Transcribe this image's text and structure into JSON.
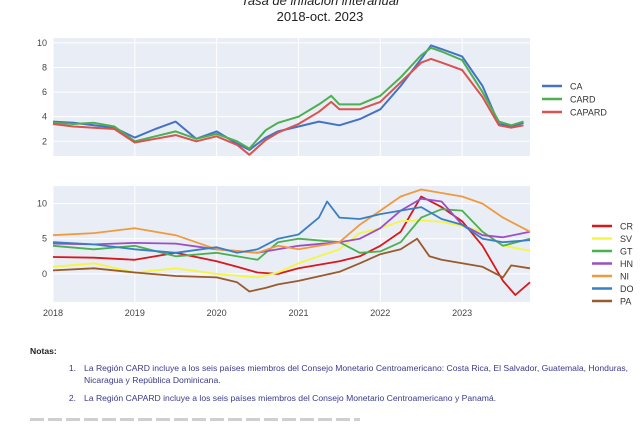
{
  "header": {
    "title": "Tasa de inflación interanual",
    "subtitle": "2018-oct. 2023"
  },
  "chart_data": [
    {
      "type": "line",
      "ylim": [
        0.8,
        10.4
      ],
      "yticks": [
        2,
        4,
        6,
        8,
        10
      ],
      "xlim": [
        2018,
        2023.83
      ],
      "xticks": [
        2018,
        2019,
        2020,
        2021,
        2022,
        2023
      ],
      "x_tick_labels_shown": false,
      "grid": true,
      "legend": "right",
      "series": [
        {
          "name": "CA",
          "color": "#4472c4",
          "points": [
            [
              2018,
              3.6
            ],
            [
              2018.25,
              3.5
            ],
            [
              2018.5,
              3.3
            ],
            [
              2018.75,
              3.1
            ],
            [
              2019,
              2.3
            ],
            [
              2019.25,
              3.0
            ],
            [
              2019.5,
              3.6
            ],
            [
              2019.75,
              2.2
            ],
            [
              2020,
              2.8
            ],
            [
              2020.25,
              1.8
            ],
            [
              2020.4,
              1.3
            ],
            [
              2020.6,
              2.3
            ],
            [
              2020.75,
              2.8
            ],
            [
              2021,
              3.2
            ],
            [
              2021.25,
              3.6
            ],
            [
              2021.5,
              3.3
            ],
            [
              2021.75,
              3.8
            ],
            [
              2022,
              4.6
            ],
            [
              2022.25,
              6.5
            ],
            [
              2022.5,
              8.7
            ],
            [
              2022.62,
              9.8
            ],
            [
              2022.75,
              9.5
            ],
            [
              2023,
              8.9
            ],
            [
              2023.25,
              6.5
            ],
            [
              2023.45,
              3.4
            ],
            [
              2023.6,
              3.2
            ],
            [
              2023.75,
              3.5
            ]
          ]
        },
        {
          "name": "CARD",
          "color": "#4caf50",
          "points": [
            [
              2018,
              3.5
            ],
            [
              2018.25,
              3.4
            ],
            [
              2018.5,
              3.5
            ],
            [
              2018.75,
              3.2
            ],
            [
              2019,
              2.0
            ],
            [
              2019.25,
              2.4
            ],
            [
              2019.5,
              2.8
            ],
            [
              2019.75,
              2.2
            ],
            [
              2020,
              2.6
            ],
            [
              2020.25,
              2.0
            ],
            [
              2020.4,
              1.4
            ],
            [
              2020.6,
              2.9
            ],
            [
              2020.75,
              3.5
            ],
            [
              2021,
              4.0
            ],
            [
              2021.25,
              5.0
            ],
            [
              2021.4,
              5.7
            ],
            [
              2021.5,
              5.0
            ],
            [
              2021.75,
              5.0
            ],
            [
              2022,
              5.7
            ],
            [
              2022.25,
              7.2
            ],
            [
              2022.5,
              9.0
            ],
            [
              2022.62,
              9.6
            ],
            [
              2022.75,
              9.3
            ],
            [
              2023,
              8.6
            ],
            [
              2023.25,
              6.0
            ],
            [
              2023.45,
              3.6
            ],
            [
              2023.6,
              3.3
            ],
            [
              2023.75,
              3.6
            ]
          ]
        },
        {
          "name": "CAPARD",
          "color": "#d9534f",
          "points": [
            [
              2018,
              3.4
            ],
            [
              2018.25,
              3.2
            ],
            [
              2018.5,
              3.1
            ],
            [
              2018.75,
              3.0
            ],
            [
              2019,
              1.9
            ],
            [
              2019.25,
              2.2
            ],
            [
              2019.5,
              2.5
            ],
            [
              2019.75,
              2.0
            ],
            [
              2020,
              2.4
            ],
            [
              2020.25,
              1.7
            ],
            [
              2020.4,
              0.9
            ],
            [
              2020.6,
              2.1
            ],
            [
              2020.75,
              2.7
            ],
            [
              2021,
              3.4
            ],
            [
              2021.25,
              4.4
            ],
            [
              2021.4,
              5.2
            ],
            [
              2021.5,
              4.6
            ],
            [
              2021.75,
              4.6
            ],
            [
              2022,
              5.2
            ],
            [
              2022.25,
              6.8
            ],
            [
              2022.5,
              8.4
            ],
            [
              2022.62,
              8.7
            ],
            [
              2022.75,
              8.4
            ],
            [
              2023,
              7.8
            ],
            [
              2023.25,
              5.6
            ],
            [
              2023.45,
              3.3
            ],
            [
              2023.6,
              3.1
            ],
            [
              2023.75,
              3.3
            ]
          ]
        }
      ]
    },
    {
      "type": "line",
      "ylim": [
        -4,
        12.5
      ],
      "yticks": [
        0,
        5,
        10
      ],
      "xlim": [
        2018,
        2023.83
      ],
      "xticks": [
        2018,
        2019,
        2020,
        2021,
        2022,
        2023
      ],
      "x_tick_labels": [
        "2018",
        "2019",
        "2020",
        "2021",
        "2022",
        "2023"
      ],
      "grid": true,
      "legend": "right",
      "series": [
        {
          "name": "CR",
          "color": "#d7191c",
          "points": [
            [
              2018,
              2.4
            ],
            [
              2018.5,
              2.3
            ],
            [
              2019,
              2.0
            ],
            [
              2019.5,
              3.0
            ],
            [
              2020,
              1.8
            ],
            [
              2020.25,
              1.0
            ],
            [
              2020.5,
              0.2
            ],
            [
              2020.75,
              0.0
            ],
            [
              2021,
              0.8
            ],
            [
              2021.5,
              1.8
            ],
            [
              2021.75,
              2.5
            ],
            [
              2022,
              4.0
            ],
            [
              2022.25,
              6.0
            ],
            [
              2022.5,
              11.0
            ],
            [
              2022.75,
              9.5
            ],
            [
              2023,
              7.5
            ],
            [
              2023.25,
              4.0
            ],
            [
              2023.5,
              -1.0
            ],
            [
              2023.65,
              -3.0
            ],
            [
              2023.83,
              -1.2
            ]
          ]
        },
        {
          "name": "SV",
          "color": "#f5f542",
          "points": [
            [
              2018,
              1.0
            ],
            [
              2018.5,
              1.5
            ],
            [
              2019,
              0.2
            ],
            [
              2019.5,
              0.8
            ],
            [
              2020,
              0.0
            ],
            [
              2020.5,
              -0.5
            ],
            [
              2020.75,
              0.2
            ],
            [
              2021,
              1.5
            ],
            [
              2021.5,
              3.5
            ],
            [
              2021.75,
              5.8
            ],
            [
              2022,
              6.5
            ],
            [
              2022.25,
              7.5
            ],
            [
              2022.5,
              7.6
            ],
            [
              2022.75,
              7.4
            ],
            [
              2023,
              6.8
            ],
            [
              2023.25,
              6.0
            ],
            [
              2023.5,
              4.0
            ],
            [
              2023.83,
              3.3
            ]
          ]
        },
        {
          "name": "GT",
          "color": "#4caf50",
          "points": [
            [
              2018,
              4.0
            ],
            [
              2018.5,
              3.5
            ],
            [
              2019,
              4.0
            ],
            [
              2019.5,
              2.5
            ],
            [
              2020,
              3.0
            ],
            [
              2020.5,
              2.0
            ],
            [
              2020.75,
              4.5
            ],
            [
              2021,
              5.0
            ],
            [
              2021.5,
              4.5
            ],
            [
              2021.75,
              3.0
            ],
            [
              2022,
              3.2
            ],
            [
              2022.25,
              4.5
            ],
            [
              2022.5,
              8.0
            ],
            [
              2022.75,
              9.2
            ],
            [
              2023,
              9.0
            ],
            [
              2023.25,
              6.0
            ],
            [
              2023.5,
              4.0
            ],
            [
              2023.83,
              5.0
            ]
          ]
        },
        {
          "name": "HN",
          "color": "#9c4fc4",
          "points": [
            [
              2018,
              4.3
            ],
            [
              2018.5,
              4.2
            ],
            [
              2019,
              4.4
            ],
            [
              2019.5,
              4.3
            ],
            [
              2020,
              3.5
            ],
            [
              2020.5,
              3.0
            ],
            [
              2020.75,
              3.5
            ],
            [
              2021,
              4.0
            ],
            [
              2021.5,
              4.5
            ],
            [
              2021.75,
              5.0
            ],
            [
              2022,
              6.5
            ],
            [
              2022.25,
              9.0
            ],
            [
              2022.5,
              10.7
            ],
            [
              2022.75,
              10.3
            ],
            [
              2023,
              7.0
            ],
            [
              2023.25,
              5.5
            ],
            [
              2023.5,
              5.2
            ],
            [
              2023.83,
              6.0
            ]
          ]
        },
        {
          "name": "NI",
          "color": "#f09a3e",
          "points": [
            [
              2018,
              5.5
            ],
            [
              2018.5,
              5.8
            ],
            [
              2019,
              6.5
            ],
            [
              2019.5,
              5.5
            ],
            [
              2020,
              3.5
            ],
            [
              2020.5,
              3.0
            ],
            [
              2020.75,
              4.0
            ],
            [
              2021,
              3.5
            ],
            [
              2021.5,
              4.5
            ],
            [
              2021.75,
              7.0
            ],
            [
              2022,
              9.0
            ],
            [
              2022.25,
              11.0
            ],
            [
              2022.5,
              12.0
            ],
            [
              2022.75,
              11.5
            ],
            [
              2023,
              11.0
            ],
            [
              2023.25,
              10.0
            ],
            [
              2023.5,
              8.0
            ],
            [
              2023.83,
              6.0
            ]
          ]
        },
        {
          "name": "DO",
          "color": "#3a7ec4",
          "points": [
            [
              2018,
              4.5
            ],
            [
              2018.5,
              4.2
            ],
            [
              2019,
              3.5
            ],
            [
              2019.5,
              3.0
            ],
            [
              2020,
              3.8
            ],
            [
              2020.25,
              3.0
            ],
            [
              2020.5,
              3.5
            ],
            [
              2020.75,
              5.0
            ],
            [
              2021,
              5.6
            ],
            [
              2021.25,
              8.0
            ],
            [
              2021.35,
              10.3
            ],
            [
              2021.5,
              8.0
            ],
            [
              2021.75,
              7.8
            ],
            [
              2022,
              8.5
            ],
            [
              2022.25,
              9.0
            ],
            [
              2022.5,
              9.5
            ],
            [
              2022.75,
              7.8
            ],
            [
              2023,
              7.0
            ],
            [
              2023.25,
              5.0
            ],
            [
              2023.5,
              4.5
            ],
            [
              2023.83,
              4.8
            ]
          ]
        },
        {
          "name": "PA",
          "color": "#9b5a2b",
          "points": [
            [
              2018,
              0.5
            ],
            [
              2018.5,
              0.8
            ],
            [
              2019,
              0.2
            ],
            [
              2019.5,
              -0.3
            ],
            [
              2020,
              -0.5
            ],
            [
              2020.25,
              -1.2
            ],
            [
              2020.4,
              -2.5
            ],
            [
              2020.6,
              -2.0
            ],
            [
              2020.75,
              -1.5
            ],
            [
              2021,
              -1.0
            ],
            [
              2021.5,
              0.3
            ],
            [
              2021.75,
              1.5
            ],
            [
              2022,
              2.8
            ],
            [
              2022.25,
              3.5
            ],
            [
              2022.45,
              5.0
            ],
            [
              2022.6,
              2.5
            ],
            [
              2022.75,
              2.0
            ],
            [
              2023,
              1.5
            ],
            [
              2023.25,
              1.0
            ],
            [
              2023.5,
              -0.5
            ],
            [
              2023.6,
              1.2
            ],
            [
              2023.83,
              0.8
            ]
          ]
        }
      ]
    }
  ],
  "notes": {
    "title": "Notas:",
    "items": [
      {
        "num": "1.",
        "text": "La Región CARD incluye a los seis países miembros del Consejo Monetario Centroamericano: Costa Rica, El Salvador, Guatemala, Honduras, Nicaragua y República Dominicana."
      },
      {
        "num": "2.",
        "text": "La Región CAPARD incluye a los seis países miembros del Consejo Monetario Centroamericano y Panamá."
      }
    ]
  }
}
